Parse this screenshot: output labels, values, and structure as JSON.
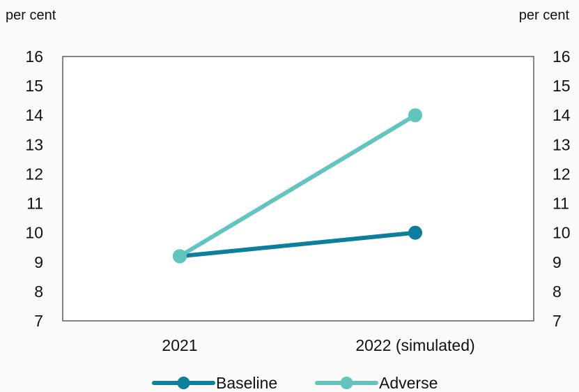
{
  "chart_data": {
    "type": "line",
    "categories": [
      "2021",
      "2022 (simulated)"
    ],
    "series": [
      {
        "name": "Baseline",
        "values": [
          9.2,
          10.0
        ],
        "color": "#0b7f9c"
      },
      {
        "name": "Adverse",
        "values": [
          9.2,
          14.0
        ],
        "color": "#62c4be"
      }
    ],
    "y_unit_left": "per cent",
    "y_unit_right": "per cent",
    "ylim": [
      7,
      16
    ],
    "yticks": [
      "7",
      "8",
      "9",
      "10",
      "11",
      "12",
      "13",
      "14",
      "15",
      "16"
    ],
    "grid": false,
    "legend_position": "bottom"
  }
}
